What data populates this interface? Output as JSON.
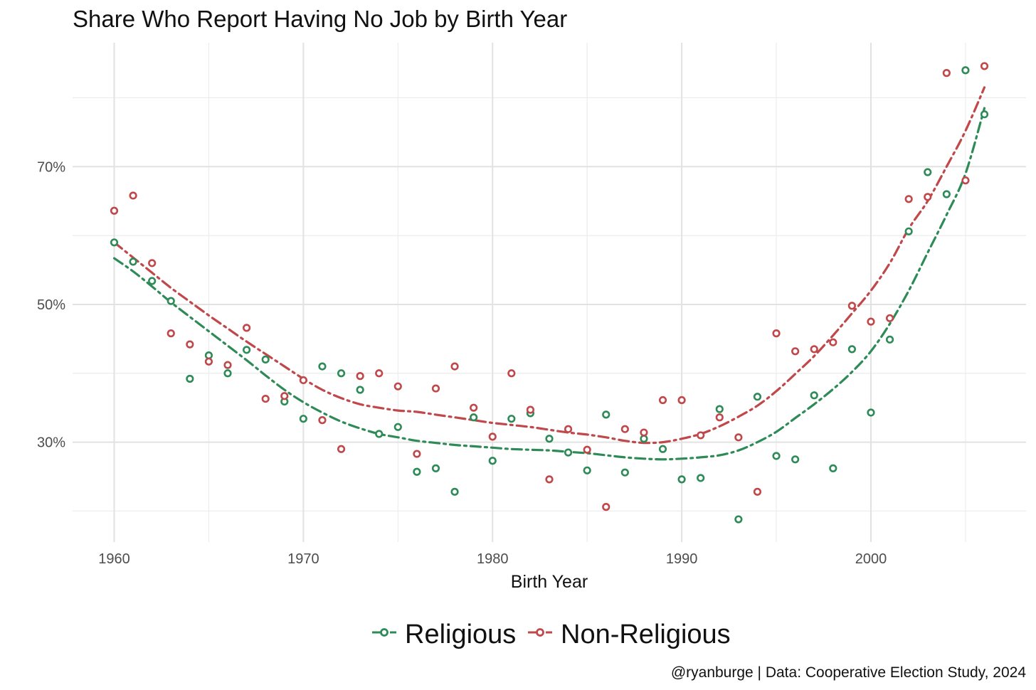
{
  "chart_data": {
    "type": "scatter",
    "title": "Share Who Report Having No Job by Birth Year",
    "xlabel": "Birth Year",
    "ylabel": "",
    "xlim": [
      1957.8,
      2008.2
    ],
    "ylim": [
      0.155,
      0.88
    ],
    "x_ticks": [
      1960,
      1970,
      1980,
      1990,
      2000
    ],
    "x_tick_labels": [
      "1960",
      "1970",
      "1980",
      "1990",
      "2000"
    ],
    "y_ticks": [
      0.3,
      0.5,
      0.7
    ],
    "y_tick_labels": [
      "30%",
      "50%",
      "70%"
    ],
    "y_minor_gridlines": [
      0.2,
      0.4,
      0.6,
      0.8
    ],
    "x_minor_gridlines": [
      1965,
      1975,
      1985,
      1995,
      2005
    ],
    "grid": true,
    "legend_position": "bottom",
    "caption": "@ryanburge | Data: Cooperative Election Study, 2024",
    "series": [
      {
        "name": "Religious",
        "color": "#2e8b57",
        "x": [
          1960,
          1961,
          1962,
          1963,
          1964,
          1965,
          1966,
          1967,
          1968,
          1969,
          1970,
          1971,
          1972,
          1973,
          1974,
          1975,
          1976,
          1977,
          1978,
          1979,
          1980,
          1981,
          1982,
          1983,
          1984,
          1985,
          1986,
          1987,
          1988,
          1989,
          1990,
          1991,
          1992,
          1993,
          1994,
          1995,
          1996,
          1997,
          1998,
          1999,
          2000,
          2001,
          2002,
          2003,
          2004,
          2005,
          2006
        ],
        "values": [
          0.59,
          0.562,
          0.534,
          0.505,
          0.392,
          0.426,
          0.4,
          0.434,
          0.42,
          0.359,
          0.334,
          0.41,
          0.4,
          0.376,
          0.312,
          0.322,
          0.257,
          0.262,
          0.228,
          0.336,
          0.273,
          0.334,
          0.342,
          0.305,
          0.285,
          0.259,
          0.34,
          0.256,
          0.305,
          0.29,
          0.246,
          0.248,
          0.348,
          0.188,
          0.366,
          0.28,
          0.275,
          0.368,
          0.262,
          0.435,
          0.343,
          0.449,
          0.606,
          0.692,
          0.66,
          0.84,
          0.776
        ],
        "trend": [
          0.567,
          0.548,
          0.526,
          0.503,
          0.482,
          0.461,
          0.44,
          0.419,
          0.397,
          0.376,
          0.358,
          0.343,
          0.33,
          0.32,
          0.312,
          0.307,
          0.302,
          0.299,
          0.296,
          0.294,
          0.292,
          0.29,
          0.289,
          0.288,
          0.286,
          0.284,
          0.281,
          0.278,
          0.276,
          0.275,
          0.276,
          0.278,
          0.281,
          0.288,
          0.3,
          0.315,
          0.335,
          0.355,
          0.377,
          0.402,
          0.432,
          0.472,
          0.52,
          0.575,
          0.63,
          0.69,
          0.785
        ]
      },
      {
        "name": "Non-Religious",
        "color": "#c0474a",
        "x": [
          1960,
          1961,
          1962,
          1963,
          1964,
          1965,
          1966,
          1967,
          1968,
          1969,
          1970,
          1971,
          1972,
          1973,
          1974,
          1975,
          1976,
          1977,
          1978,
          1979,
          1980,
          1981,
          1982,
          1983,
          1984,
          1985,
          1986,
          1987,
          1988,
          1989,
          1990,
          1991,
          1992,
          1993,
          1994,
          1995,
          1996,
          1997,
          1998,
          1999,
          2000,
          2001,
          2002,
          2003,
          2004,
          2005,
          2006
        ],
        "values": [
          0.636,
          0.658,
          0.56,
          0.458,
          0.442,
          0.417,
          0.412,
          0.466,
          0.363,
          0.367,
          0.39,
          0.332,
          0.29,
          0.396,
          0.4,
          0.381,
          0.283,
          0.378,
          0.41,
          0.35,
          0.308,
          0.4,
          0.347,
          0.246,
          0.319,
          0.289,
          0.206,
          0.319,
          0.314,
          0.361,
          0.361,
          0.31,
          0.336,
          0.307,
          0.228,
          0.458,
          0.432,
          0.435,
          0.445,
          0.498,
          0.475,
          0.48,
          0.653,
          0.656,
          0.836,
          0.68,
          0.846
        ],
        "trend": [
          0.59,
          0.568,
          0.546,
          0.524,
          0.504,
          0.484,
          0.465,
          0.446,
          0.428,
          0.41,
          0.392,
          0.376,
          0.364,
          0.355,
          0.35,
          0.346,
          0.344,
          0.34,
          0.336,
          0.332,
          0.328,
          0.325,
          0.322,
          0.318,
          0.314,
          0.311,
          0.307,
          0.302,
          0.299,
          0.3,
          0.305,
          0.312,
          0.323,
          0.337,
          0.353,
          0.374,
          0.399,
          0.425,
          0.455,
          0.487,
          0.52,
          0.56,
          0.61,
          0.65,
          0.7,
          0.752,
          0.815
        ]
      }
    ]
  }
}
